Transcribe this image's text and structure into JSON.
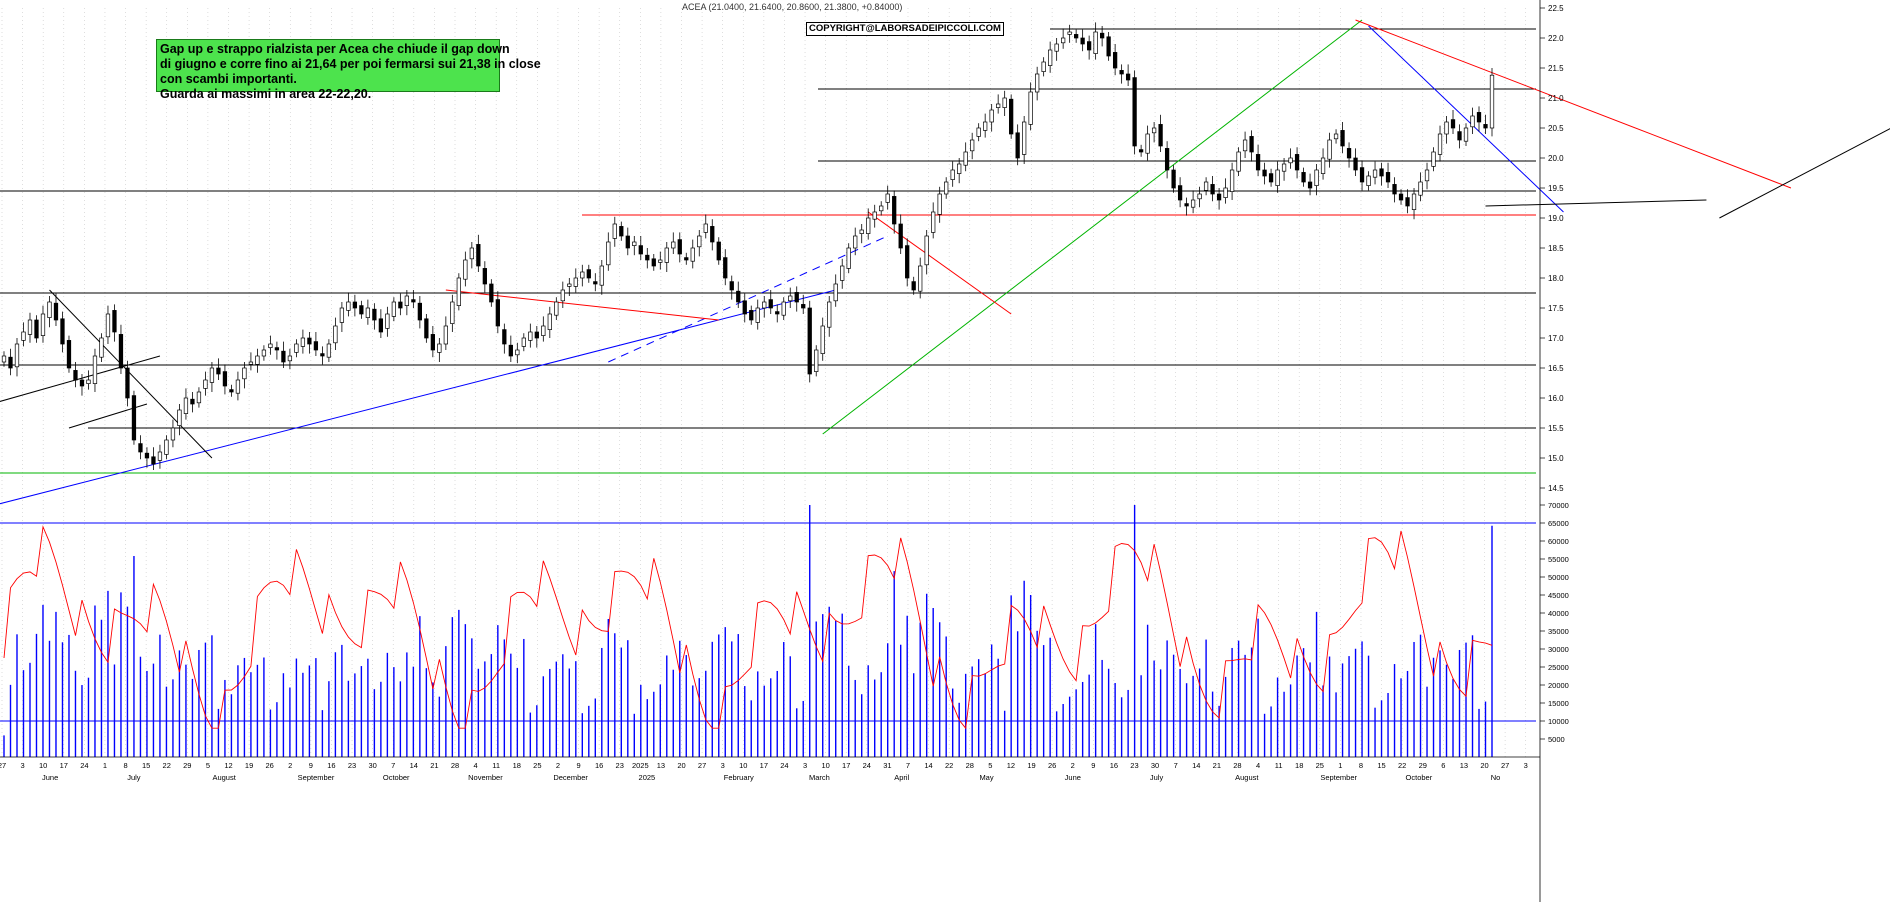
{
  "title": "ACEA (21.0400, 21.6400, 20.8600, 21.3800, +0.84000)",
  "copyright": "COPYRIGHT@LABORSADEIPICCOLI.COM",
  "note_lines": [
    "Gap up e strappo rialzista per Acea che chiude il gap down",
    "di giugno e corre fino ai 21,64 per poi fermarsi sui 21,38 in close",
    "con scambi importanti.",
    "Guarda ai massimi in area 22-22,20."
  ],
  "colors": {
    "up_candle": "#ffffff",
    "down_candle": "#000000",
    "volume": "#0000ff",
    "oscillator": "#ff0000",
    "green_line": "#00b400",
    "blue_line": "#0000ff",
    "red_line": "#ff0000"
  },
  "chart_data": {
    "type": "candlestick",
    "price_axis": {
      "min": 14.5,
      "max": 22.5,
      "ticks": [
        "14.5",
        "15.0",
        "15.5",
        "16.0",
        "16.5",
        "17.0",
        "17.5",
        "18.0",
        "18.5",
        "19.0",
        "19.5",
        "20.0",
        "20.5",
        "21.0",
        "21.5",
        "22.0",
        "22.5"
      ]
    },
    "volume_axis": {
      "min": 0,
      "max": 70000,
      "ticks": [
        "5000",
        "10000",
        "15000",
        "20000",
        "25000",
        "30000",
        "35000",
        "40000",
        "45000",
        "50000",
        "55000",
        "60000",
        "65000",
        "70000"
      ]
    },
    "day_labels": [
      "27",
      "3",
      "10",
      "17",
      "24",
      "1",
      "8",
      "15",
      "22",
      "29",
      "5",
      "12",
      "19",
      "26",
      "2",
      "9",
      "16",
      "23",
      "30",
      "7",
      "14",
      "21",
      "28",
      "4",
      "11",
      "18",
      "25",
      "2",
      "9",
      "16",
      "23",
      "2025",
      "13",
      "20",
      "27",
      "3",
      "10",
      "17",
      "24",
      "3",
      "10",
      "17",
      "24",
      "31",
      "7",
      "14",
      "22",
      "28",
      "5",
      "12",
      "19",
      "26",
      "2",
      "9",
      "16",
      "23",
      "30",
      "7",
      "14",
      "21",
      "28",
      "4",
      "11",
      "18",
      "25",
      "1",
      "8",
      "15",
      "22",
      "29",
      "6",
      "13",
      "20",
      "27",
      "3"
    ],
    "month_labels": [
      "June",
      "July",
      "August",
      "September",
      "October",
      "November",
      "December",
      "2025",
      "February",
      "March",
      "April",
      "May",
      "June",
      "July",
      "August",
      "September",
      "October",
      "No"
    ],
    "horizontal_levels": [
      22.15,
      21.15,
      19.95,
      19.45,
      19.05,
      17.75,
      16.55,
      15.5,
      14.75
    ],
    "last_close": 21.38,
    "closes": [
      16.7,
      16.5,
      16.9,
      17.1,
      17.3,
      17.0,
      17.4,
      17.6,
      17.3,
      16.9,
      16.5,
      16.3,
      16.2,
      16.3,
      16.7,
      17.0,
      17.4,
      17.1,
      16.5,
      16.0,
      15.3,
      15.1,
      15.0,
      14.9,
      15.1,
      15.3,
      15.5,
      15.8,
      16.0,
      15.9,
      16.1,
      16.3,
      16.5,
      16.4,
      16.2,
      16.1,
      16.3,
      16.5,
      16.6,
      16.7,
      16.8,
      16.9,
      16.8,
      16.6,
      16.7,
      16.9,
      17.0,
      16.9,
      16.8,
      16.7,
      16.9,
      17.2,
      17.5,
      17.6,
      17.5,
      17.4,
      17.5,
      17.3,
      17.1,
      17.4,
      17.6,
      17.5,
      17.7,
      17.6,
      17.3,
      17.0,
      16.8,
      16.9,
      17.2,
      17.6,
      18.0,
      18.3,
      18.5,
      18.2,
      17.9,
      17.6,
      17.2,
      16.9,
      16.7,
      16.8,
      17.0,
      17.1,
      17.0,
      17.2,
      17.4,
      17.6,
      17.8,
      17.9,
      18.0,
      18.1,
      18.0,
      17.9,
      18.2,
      18.6,
      18.9,
      18.7,
      18.5,
      18.6,
      18.4,
      18.3,
      18.2,
      18.3,
      18.5,
      18.6,
      18.4,
      18.3,
      18.5,
      18.7,
      18.9,
      18.6,
      18.3,
      18.0,
      17.8,
      17.6,
      17.4,
      17.3,
      17.5,
      17.6,
      17.5,
      17.4,
      17.6,
      17.7,
      17.6,
      17.5,
      16.4,
      16.8,
      17.2,
      17.6,
      17.9,
      18.2,
      18.5,
      18.7,
      18.8,
      19.0,
      19.1,
      19.2,
      19.4,
      18.9,
      18.5,
      18.0,
      17.8,
      18.2,
      18.7,
      19.1,
      19.4,
      19.6,
      19.8,
      19.9,
      20.1,
      20.3,
      20.5,
      20.6,
      20.8,
      20.9,
      21.0,
      20.4,
      20.0,
      20.6,
      21.1,
      21.4,
      21.6,
      21.8,
      21.9,
      22.0,
      22.1,
      22.0,
      21.9,
      21.8,
      22.1,
      22.0,
      21.7,
      21.5,
      21.4,
      21.3,
      20.2,
      20.1,
      20.4,
      20.5,
      20.2,
      19.8,
      19.5,
      19.3,
      19.2,
      19.3,
      19.4,
      19.6,
      19.4,
      19.3,
      19.5,
      19.8,
      20.1,
      20.3,
      20.1,
      19.8,
      19.7,
      19.6,
      19.8,
      19.9,
      20.0,
      19.8,
      19.6,
      19.5,
      19.8,
      20.0,
      20.3,
      20.4,
      20.2,
      20.0,
      19.8,
      19.6,
      19.7,
      19.8,
      19.7,
      19.6,
      19.4,
      19.3,
      19.2,
      19.4,
      19.6,
      19.8,
      20.1,
      20.4,
      20.6,
      20.5,
      20.3,
      20.5,
      20.7,
      20.6,
      20.5,
      21.38
    ]
  }
}
